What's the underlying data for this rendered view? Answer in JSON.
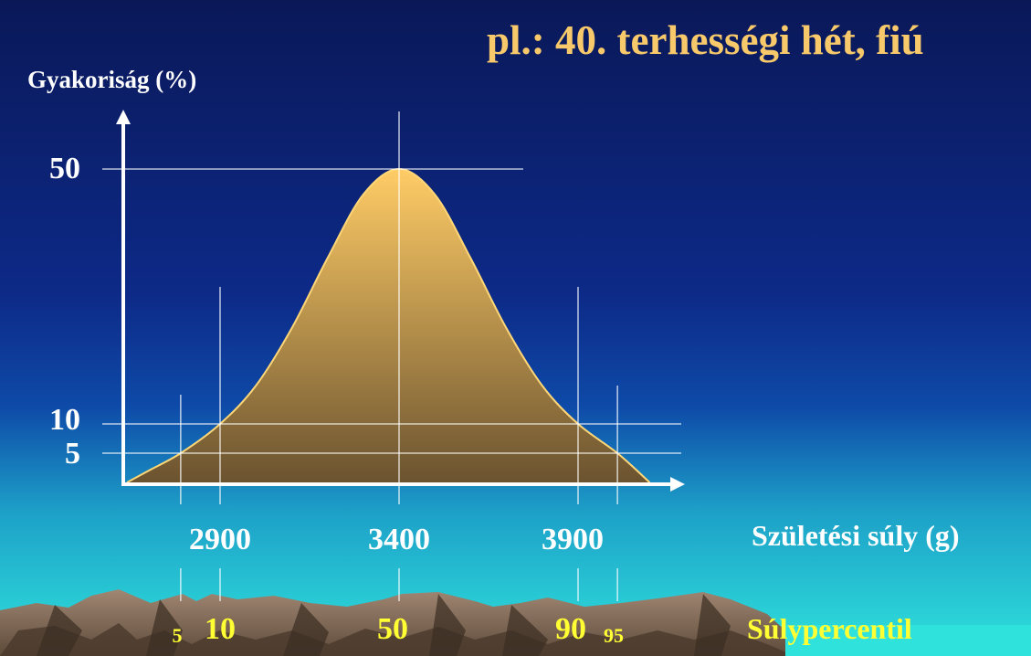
{
  "title": "pl.: 40. terhességi hét, fiú",
  "chart_data": {
    "type": "area",
    "ylabel": "Gyakoriság (%)",
    "xlabel": "Születési súly (g)",
    "y_ticks": [
      "50",
      "10",
      "5"
    ],
    "y_tick_values": [
      50,
      10,
      5
    ],
    "x_ticks": [
      "2900",
      "3400",
      "3900"
    ],
    "x_tick_values": [
      2900,
      3400,
      3900
    ],
    "percentile_label": "Súlypercentil",
    "percentiles": [
      {
        "label": "5",
        "weight": 2790,
        "size": "small"
      },
      {
        "label": "10",
        "weight": 2900,
        "size": "large"
      },
      {
        "label": "50",
        "weight": 3400,
        "size": "large"
      },
      {
        "label": "90",
        "weight": 3900,
        "size": "large"
      },
      {
        "label": "95",
        "weight": 4010,
        "size": "small"
      }
    ],
    "curve": {
      "mean": 3400,
      "peak": 50
    },
    "x": [
      2640,
      2700,
      2790,
      2900,
      3000,
      3100,
      3200,
      3300,
      3400,
      3500,
      3600,
      3700,
      3800,
      3900,
      4010,
      4100
    ],
    "y": [
      0,
      2,
      5,
      10,
      16,
      25,
      36,
      46,
      50,
      46,
      36,
      25,
      16,
      10,
      5,
      0
    ],
    "colors": {
      "fill_top": "#ffcc66",
      "fill_bottom": "#6b5330",
      "outline": "#ffd777",
      "title": "#f7c96b",
      "percentile": "#ffff33"
    }
  }
}
